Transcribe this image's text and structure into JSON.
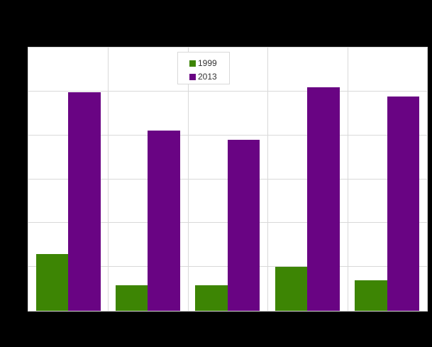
{
  "chart_data": {
    "type": "bar",
    "title": "",
    "xlabel": "",
    "ylabel": "",
    "categories": [
      "",
      "",
      "",
      "",
      ""
    ],
    "series": [
      {
        "name": "1999",
        "color": "#3d8504",
        "values": [
          1.3,
          0.59,
          0.59,
          1.0,
          0.69
        ]
      },
      {
        "name": "2013",
        "color": "#690483",
        "values": [
          4.98,
          4.1,
          3.89,
          5.1,
          4.89
        ]
      }
    ],
    "ylim": [
      0,
      6
    ],
    "yticks": [
      0,
      1,
      2,
      3,
      4,
      5,
      6
    ],
    "ytick_labels": [
      "",
      "",
      "",
      "",
      "",
      "",
      ""
    ],
    "grid": true,
    "legend_position": "top-center-inside",
    "note": "axis tick labels and title are not visible (rendered black on black); values are in gridline units"
  },
  "legend": {
    "items": [
      {
        "label": "1999",
        "color": "#3d8504"
      },
      {
        "label": "2013",
        "color": "#690483"
      }
    ]
  }
}
